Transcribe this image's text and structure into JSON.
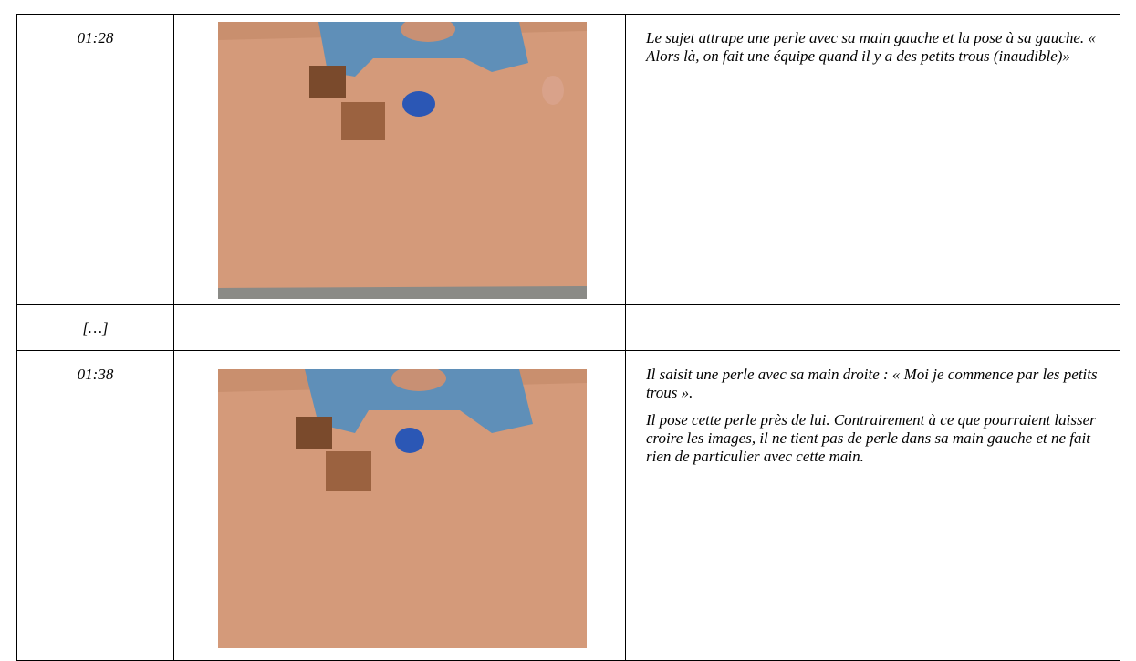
{
  "table": {
    "rows": [
      {
        "time": "01:28",
        "paragraphs": [
          "Le sujet attrape une perle avec sa main gauche et la pose à sa gauche. « Alors là, on fait une équipe quand il y a des petits trous (inaudible)»"
        ]
      },
      {
        "time": "[…]",
        "paragraphs": []
      },
      {
        "time": "01:38",
        "paragraphs": [
          "Il saisit une perle avec sa main droite : « Moi je commence par les petits trous ».",
          "Il pose cette perle près de lui. Contrairement à ce que pourraient laisser croire les images, il ne tient pas de perle dans sa main gauche et ne fait rien de particulier avec cette main."
        ]
      }
    ]
  }
}
